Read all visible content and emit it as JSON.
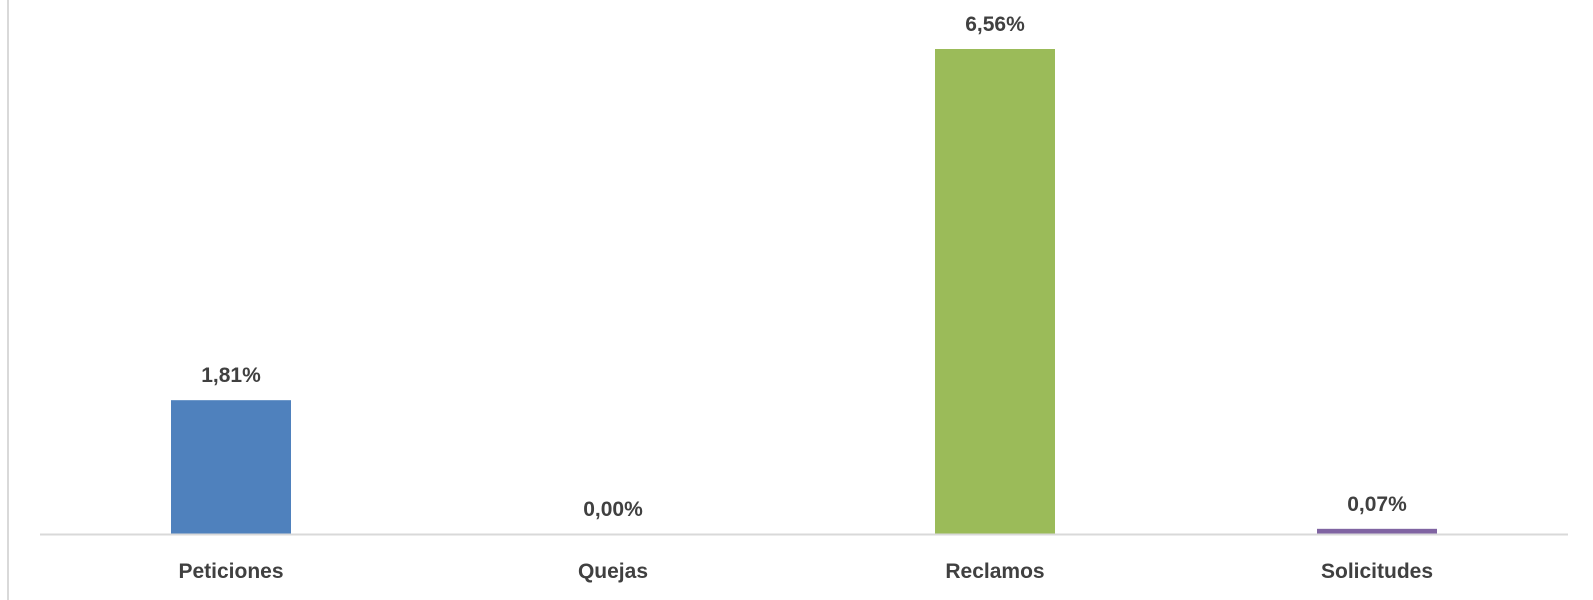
{
  "chart_data": {
    "type": "bar",
    "categories": [
      "Peticiones",
      "Quejas",
      "Reclamos",
      "Solicitudes"
    ],
    "values": [
      1.81,
      0.0,
      6.56,
      0.07
    ],
    "value_labels": [
      "1,81%",
      "0,00%",
      "6,56%",
      "0,07%"
    ],
    "ylim": [
      0,
      6.56
    ],
    "grid": false,
    "legend": "none",
    "bar_colors": [
      "#4f81bd",
      "#c0504d",
      "#9bbb59",
      "#8064a2"
    ],
    "axis_color": "#d9d9d9",
    "border_color": "#d9d9d9"
  }
}
